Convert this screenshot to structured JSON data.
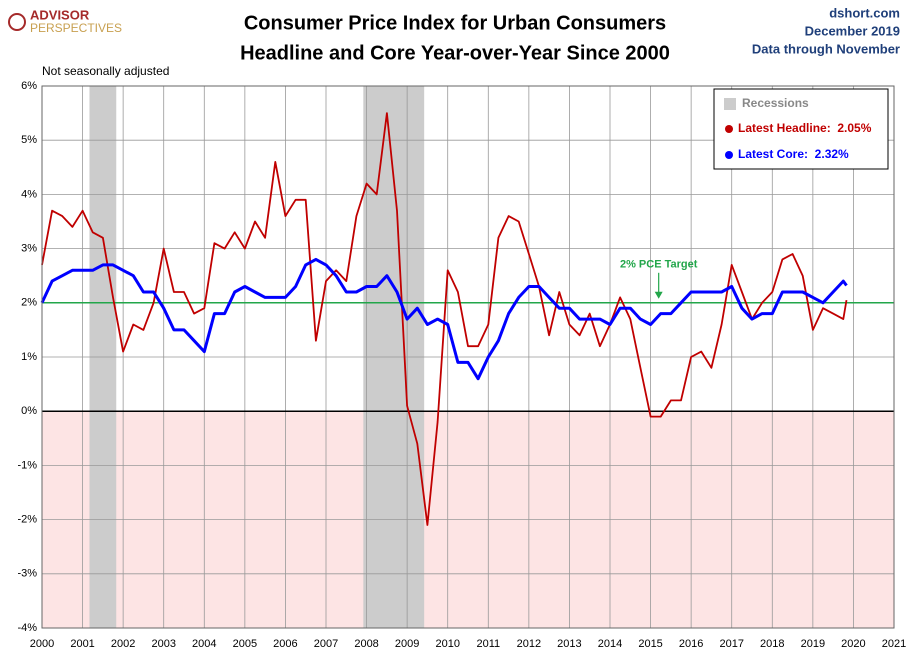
{
  "chart_data": {
    "type": "line",
    "title": "Consumer Price Index for Urban Consumers",
    "subtitle": "Headline and Core Year-over-Year Since 2000",
    "logo": [
      "ADVISOR",
      "PERSPECTIVES"
    ],
    "source": "dshort.com",
    "date": "December 2019",
    "data_note": "Data through November",
    "note": "Not seasonally adjusted",
    "x": [
      2000,
      2000.25,
      2000.5,
      2000.75,
      2001,
      2001.25,
      2001.5,
      2001.75,
      2002,
      2002.25,
      2002.5,
      2002.75,
      2003,
      2003.25,
      2003.5,
      2003.75,
      2004,
      2004.25,
      2004.5,
      2004.75,
      2005,
      2005.25,
      2005.5,
      2005.75,
      2006,
      2006.25,
      2006.5,
      2006.75,
      2007,
      2007.25,
      2007.5,
      2007.75,
      2008,
      2008.25,
      2008.5,
      2008.75,
      2009,
      2009.25,
      2009.5,
      2009.75,
      2010,
      2010.25,
      2010.5,
      2010.75,
      2011,
      2011.25,
      2011.5,
      2011.75,
      2012,
      2012.25,
      2012.5,
      2012.75,
      2013,
      2013.25,
      2013.5,
      2013.75,
      2014,
      2014.25,
      2014.5,
      2014.75,
      2015,
      2015.25,
      2015.5,
      2015.75,
      2016,
      2016.25,
      2016.5,
      2016.75,
      2017,
      2017.25,
      2017.5,
      2017.75,
      2018,
      2018.25,
      2018.5,
      2018.75,
      2019,
      2019.25,
      2019.5,
      2019.75,
      2019.83
    ],
    "series": [
      {
        "name": "Latest Headline:  2.05%",
        "color": "#c00000",
        "values": [
          2.7,
          3.7,
          3.6,
          3.4,
          3.7,
          3.3,
          3.2,
          2.1,
          1.1,
          1.6,
          1.5,
          2.0,
          3.0,
          2.2,
          2.2,
          1.8,
          1.9,
          3.1,
          3.0,
          3.3,
          3.0,
          3.5,
          3.2,
          4.6,
          3.6,
          3.9,
          3.9,
          1.3,
          2.4,
          2.6,
          2.4,
          3.6,
          4.2,
          4.0,
          5.5,
          3.7,
          0.1,
          -0.6,
          -2.1,
          -0.2,
          2.6,
          2.2,
          1.2,
          1.2,
          1.6,
          3.2,
          3.6,
          3.5,
          2.9,
          2.3,
          1.4,
          2.2,
          1.6,
          1.4,
          1.8,
          1.2,
          1.6,
          2.1,
          1.7,
          0.8,
          -0.1,
          -0.1,
          0.2,
          0.2,
          1.0,
          1.1,
          0.8,
          1.6,
          2.7,
          2.2,
          1.7,
          2.0,
          2.2,
          2.8,
          2.9,
          2.5,
          1.5,
          1.9,
          1.8,
          1.7,
          2.05
        ]
      },
      {
        "name": "Latest Core:  2.32%",
        "color": "#0000ff",
        "values": [
          2.0,
          2.4,
          2.5,
          2.6,
          2.6,
          2.6,
          2.7,
          2.7,
          2.6,
          2.5,
          2.2,
          2.2,
          1.9,
          1.5,
          1.5,
          1.3,
          1.1,
          1.8,
          1.8,
          2.2,
          2.3,
          2.2,
          2.1,
          2.1,
          2.1,
          2.3,
          2.7,
          2.8,
          2.7,
          2.5,
          2.2,
          2.2,
          2.3,
          2.3,
          2.5,
          2.2,
          1.7,
          1.9,
          1.6,
          1.7,
          1.6,
          0.9,
          0.9,
          0.6,
          1.0,
          1.3,
          1.8,
          2.1,
          2.3,
          2.3,
          2.1,
          1.9,
          1.9,
          1.7,
          1.7,
          1.7,
          1.6,
          1.9,
          1.9,
          1.7,
          1.6,
          1.8,
          1.8,
          2.0,
          2.2,
          2.2,
          2.2,
          2.2,
          2.3,
          1.9,
          1.7,
          1.8,
          1.8,
          2.2,
          2.2,
          2.2,
          2.1,
          2.0,
          2.2,
          2.4,
          2.32
        ]
      }
    ],
    "recessions": {
      "label": "Recessions",
      "color": "#cccccc",
      "spans": [
        [
          2001.17,
          2001.83
        ],
        [
          2007.92,
          2009.42
        ]
      ]
    },
    "reference_line": {
      "value": 2,
      "label": "2% PCE Target",
      "color": "#22a64a"
    },
    "negative_shade": "#fde4e4",
    "xlim": [
      2000,
      2021
    ],
    "xticks": [
      2000,
      2001,
      2002,
      2003,
      2004,
      2005,
      2006,
      2007,
      2008,
      2009,
      2010,
      2011,
      2012,
      2013,
      2014,
      2015,
      2016,
      2017,
      2018,
      2019,
      2020,
      2021
    ],
    "ylim": [
      -4,
      6
    ],
    "yticks": [
      {
        "value": -4,
        "label": "-4%"
      },
      {
        "value": -3,
        "label": "-3%"
      },
      {
        "value": -2,
        "label": "-2%"
      },
      {
        "value": -1,
        "label": "-1%"
      },
      {
        "value": 0,
        "label": "0%"
      },
      {
        "value": 1,
        "label": "1%"
      },
      {
        "value": 2,
        "label": "2%"
      },
      {
        "value": 3,
        "label": "3%"
      },
      {
        "value": 4,
        "label": "4%"
      },
      {
        "value": 5,
        "label": "5%"
      },
      {
        "value": 6,
        "label": "6%"
      }
    ],
    "grid": true,
    "legend": "top-right"
  }
}
